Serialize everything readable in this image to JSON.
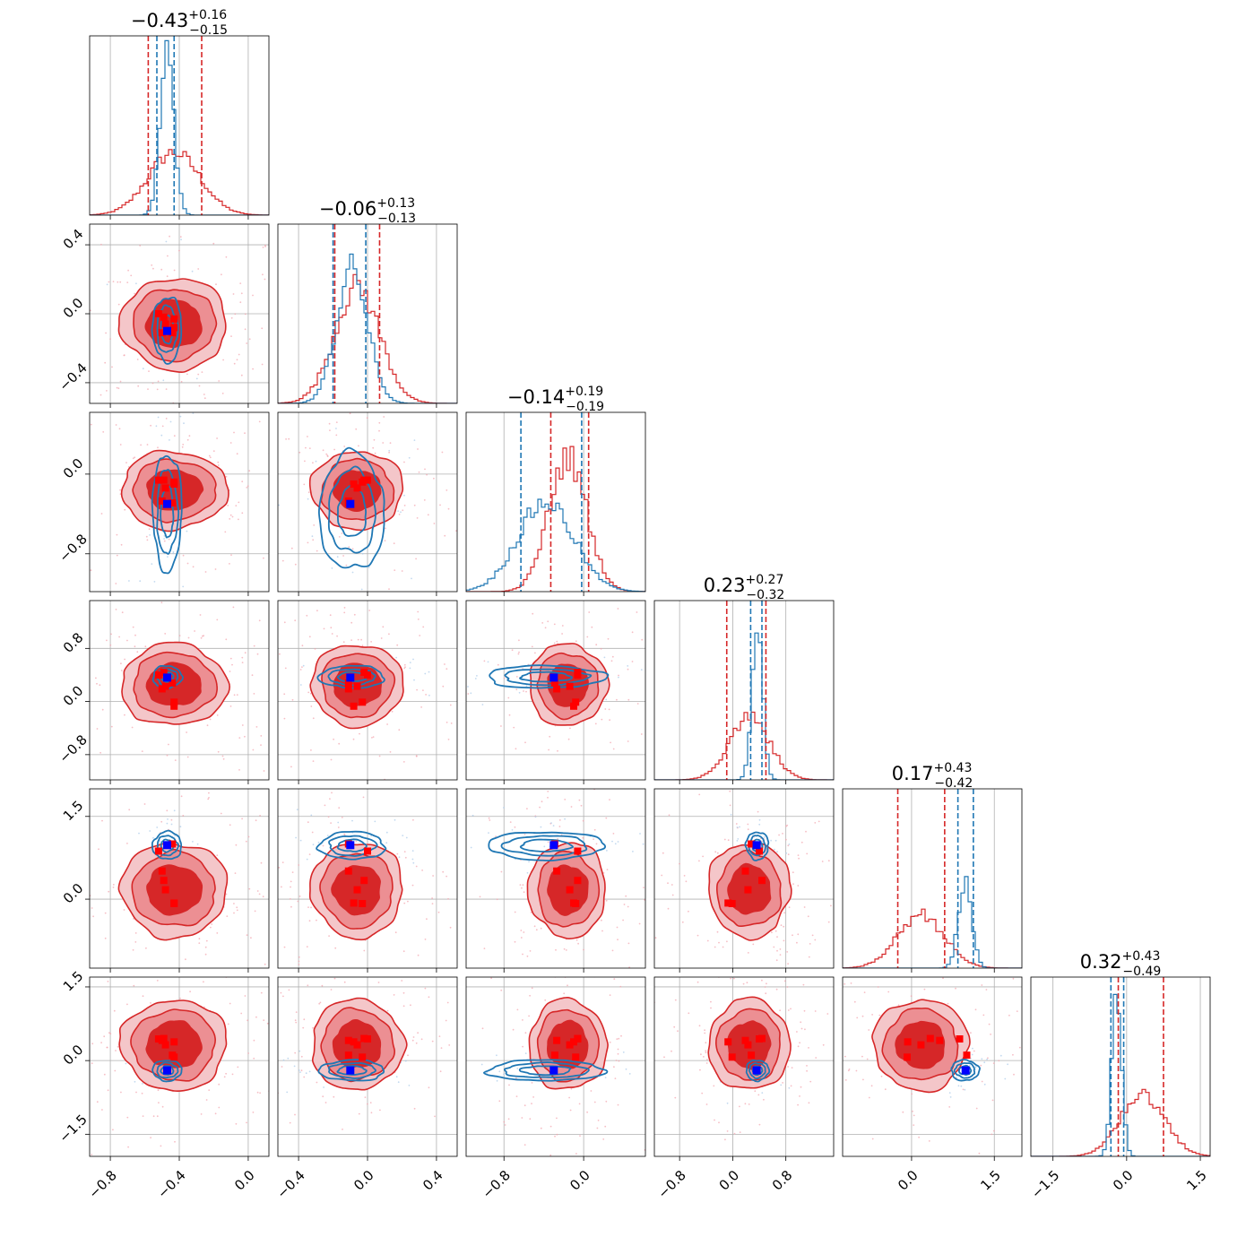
{
  "chart_data": {
    "type": "corner",
    "n_params": 6,
    "titles": [
      {
        "median": "−0.43",
        "plus": "+0.16",
        "minus": "−0.15"
      },
      {
        "median": "−0.06",
        "plus": "+0.13",
        "minus": "−0.13"
      },
      {
        "median": "−0.14",
        "plus": "+0.19",
        "minus": "−0.19"
      },
      {
        "median": "0.23",
        "plus": "+0.27",
        "minus": "−0.32"
      },
      {
        "median": "0.17",
        "plus": "+0.43",
        "minus": "−0.42"
      },
      {
        "median": "0.32",
        "plus": "+0.43",
        "minus": "−0.49"
      }
    ],
    "ranges": [
      [
        -0.92,
        0.12
      ],
      [
        -0.52,
        0.52
      ],
      [
        -1.18,
        0.62
      ],
      [
        -1.18,
        1.52
      ],
      [
        -1.25,
        2.0
      ],
      [
        -1.95,
        1.7
      ]
    ],
    "ticks": [
      {
        "values": [
          -0.8,
          -0.4,
          0.0
        ],
        "labels": [
          "−0.8",
          "−0.4",
          "0.0"
        ]
      },
      {
        "values": [
          -0.4,
          0.0,
          0.4
        ],
        "labels": [
          "−0.4",
          "0.0",
          "0.4"
        ]
      },
      {
        "values": [
          -0.8,
          0.0
        ],
        "labels": [
          "−0.8",
          "0.0"
        ]
      },
      {
        "values": [
          -0.8,
          0.0,
          0.8
        ],
        "labels": [
          "−0.8",
          "0.0",
          "0.8"
        ]
      },
      {
        "values": [
          0.0,
          1.5
        ],
        "labels": [
          "0.0",
          "1.5"
        ]
      },
      {
        "values": [
          -1.5,
          0.0,
          1.5
        ],
        "labels": [
          "−1.5",
          "0.0",
          "1.5"
        ]
      }
    ],
    "grid": true,
    "colors": {
      "posterior": "#d62728",
      "prior": "#1f77b4",
      "truth_blue": "#0000ff",
      "truth_red": "#ff0000"
    },
    "series": [
      {
        "color": "#d62728",
        "mean": [
          -0.43,
          -0.06,
          -0.16,
          0.25,
          0.17,
          0.32
        ],
        "sd": [
          0.15,
          0.13,
          0.19,
          0.3,
          0.42,
          0.45
        ],
        "quantiles": [
          [
            -0.58,
            -0.27
          ],
          [
            -0.19,
            0.07
          ],
          [
            -0.33,
            0.05
          ],
          [
            -0.09,
            0.5
          ],
          [
            -0.25,
            0.6
          ],
          [
            -0.17,
            0.75
          ]
        ]
      },
      {
        "color": "#1f77b4",
        "mean": [
          -0.47,
          -0.09,
          -0.38,
          0.37,
          0.97,
          -0.2
        ],
        "sd": [
          0.04,
          0.09,
          0.28,
          0.08,
          0.12,
          0.1
        ],
        "quantiles": [
          [
            -0.53,
            -0.43
          ],
          [
            -0.2,
            -0.01
          ],
          [
            -0.63,
            -0.02
          ],
          [
            0.27,
            0.44
          ],
          [
            0.84,
            1.12
          ],
          [
            -0.32,
            -0.06
          ]
        ]
      }
    ],
    "truth_blue": [
      -0.47,
      -0.1,
      -0.3,
      0.36,
      0.98,
      -0.2
    ],
    "truth_red": [
      [
        -0.48,
        -0.49,
        -0.5,
        -0.43,
        -0.52,
        -0.44,
        -0.43
      ],
      [
        -0.06,
        -0.02,
        -0.11,
        -0.03,
        0.0,
        -0.11,
        -0.08
      ],
      [
        -0.14,
        -0.06,
        -0.27,
        -0.08,
        -0.06,
        -0.29,
        -0.1
      ],
      [
        0.23,
        0.44,
        0.19,
        -0.01,
        0.4,
        0.28,
        -0.07
      ],
      [
        0.17,
        0.34,
        0.51,
        -0.08,
        0.87,
        1.0,
        -0.07
      ],
      [
        0.32,
        0.45,
        0.41,
        0.07,
        0.44,
        0.11,
        0.38
      ]
    ]
  }
}
